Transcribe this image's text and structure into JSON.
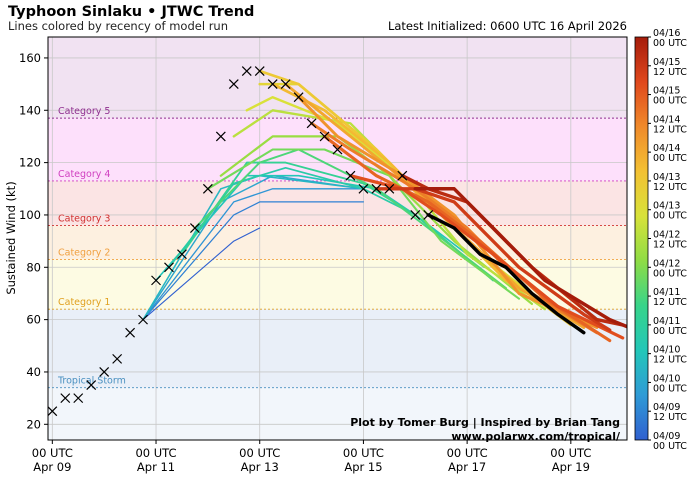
{
  "header": {
    "title": "Typhoon Sinlaku • JTWC Trend",
    "subtitle": "Lines colored by recency of model run",
    "initialized": "Latest Initialized: 0600 UTC 16 April 2026"
  },
  "credits": {
    "line1": "Plot by Tomer Burg | Inspired by Brian Tang",
    "line2": "www.polarwx.com/tropical/"
  },
  "chart_data": {
    "type": "line",
    "title": "Typhoon Sinlaku • JTWC Trend",
    "ylabel": "Sustained Wind (kt)",
    "xlabel": "",
    "xlim_hours": [
      -2,
      266
    ],
    "ylim": [
      14,
      168
    ],
    "yticks": [
      20,
      40,
      60,
      80,
      100,
      120,
      140,
      160
    ],
    "xticks": [
      {
        "hour": 0,
        "line1": "00 UTC",
        "line2": "Apr 09"
      },
      {
        "hour": 48,
        "line1": "00 UTC",
        "line2": "Apr 11"
      },
      {
        "hour": 96,
        "line1": "00 UTC",
        "line2": "Apr 13"
      },
      {
        "hour": 144,
        "line1": "00 UTC",
        "line2": "Apr 15"
      },
      {
        "hour": 192,
        "line1": "00 UTC",
        "line2": "Apr 17"
      },
      {
        "hour": 240,
        "line1": "00 UTC",
        "line2": "Apr 19"
      }
    ],
    "categories": [
      {
        "name": "Tropical Storm",
        "min": 34,
        "max": 64,
        "color": "#4a90c0",
        "fill": "#e9eff8"
      },
      {
        "name": "Category 1",
        "min": 64,
        "max": 83,
        "color": "#e0a020",
        "fill": "#fdfbe3"
      },
      {
        "name": "Category 2",
        "min": 83,
        "max": 96,
        "color": "#f0a040",
        "fill": "#fdf0e0"
      },
      {
        "name": "Category 3",
        "min": 96,
        "max": 113,
        "color": "#d03030",
        "fill": "#fbe4e4"
      },
      {
        "name": "Category 4",
        "min": 113,
        "max": 137,
        "color": "#d040c0",
        "fill": "#fde0fb"
      },
      {
        "name": "Category 5",
        "min": 137,
        "max": 168,
        "color": "#903090",
        "fill": "#f1e2f2"
      }
    ],
    "below_ts_fill": "#f2f6fb",
    "observed": [
      {
        "h": 0,
        "v": 25
      },
      {
        "h": 6,
        "v": 30
      },
      {
        "h": 12,
        "v": 30
      },
      {
        "h": 18,
        "v": 35
      },
      {
        "h": 24,
        "v": 40
      },
      {
        "h": 30,
        "v": 45
      },
      {
        "h": 36,
        "v": 55
      },
      {
        "h": 42,
        "v": 60
      },
      {
        "h": 48,
        "v": 75
      },
      {
        "h": 54,
        "v": 80
      },
      {
        "h": 60,
        "v": 85
      },
      {
        "h": 66,
        "v": 95
      },
      {
        "h": 72,
        "v": 110
      },
      {
        "h": 78,
        "v": 130
      },
      {
        "h": 84,
        "v": 150
      },
      {
        "h": 90,
        "v": 155
      },
      {
        "h": 96,
        "v": 155
      },
      {
        "h": 102,
        "v": 150
      },
      {
        "h": 108,
        "v": 150
      },
      {
        "h": 114,
        "v": 145
      },
      {
        "h": 120,
        "v": 135
      },
      {
        "h": 126,
        "v": 130
      },
      {
        "h": 132,
        "v": 125
      },
      {
        "h": 138,
        "v": 115
      },
      {
        "h": 144,
        "v": 110
      },
      {
        "h": 150,
        "v": 110
      },
      {
        "h": 156,
        "v": 110
      },
      {
        "h": 162,
        "v": 115
      },
      {
        "h": 168,
        "v": 100
      },
      {
        "h": 174,
        "v": 100
      }
    ],
    "series": [
      {
        "run": "04/09 00 UTC",
        "recency": 0.0,
        "points": [
          [
            42,
            60
          ],
          [
            84,
            90
          ],
          [
            96,
            95
          ]
        ]
      },
      {
        "run": "04/09 12 UTC",
        "recency": 0.06,
        "points": [
          [
            42,
            60
          ],
          [
            84,
            100
          ],
          [
            96,
            105
          ],
          [
            144,
            105
          ]
        ]
      },
      {
        "run": "04/09 18 UTC",
        "recency": 0.1,
        "points": [
          [
            42,
            60
          ],
          [
            84,
            105
          ],
          [
            102,
            110
          ],
          [
            144,
            110
          ]
        ]
      },
      {
        "run": "04/10 00 UTC",
        "recency": 0.14,
        "points": [
          [
            42,
            60
          ],
          [
            78,
            105
          ],
          [
            102,
            115
          ],
          [
            144,
            110
          ]
        ]
      },
      {
        "run": "04/10 06 UTC",
        "recency": 0.18,
        "points": [
          [
            42,
            60
          ],
          [
            78,
            110
          ],
          [
            96,
            115
          ],
          [
            144,
            110
          ]
        ]
      },
      {
        "run": "04/10 12 UTC",
        "recency": 0.22,
        "points": [
          [
            48,
            75
          ],
          [
            90,
            115
          ],
          [
            114,
            115
          ],
          [
            150,
            110
          ],
          [
            168,
            100
          ],
          [
            200,
            80
          ]
        ]
      },
      {
        "run": "04/10 18 UTC",
        "recency": 0.26,
        "points": [
          [
            54,
            80
          ],
          [
            84,
            112
          ],
          [
            108,
            118
          ],
          [
            144,
            110
          ],
          [
            168,
            100
          ],
          [
            204,
            75
          ]
        ]
      },
      {
        "run": "04/11 00 UTC",
        "recency": 0.31,
        "points": [
          [
            60,
            85
          ],
          [
            90,
            120
          ],
          [
            108,
            120
          ],
          [
            144,
            112
          ],
          [
            168,
            100
          ],
          [
            204,
            75
          ]
        ]
      },
      {
        "run": "04/11 06 UTC",
        "recency": 0.36,
        "points": [
          [
            66,
            95
          ],
          [
            96,
            120
          ],
          [
            114,
            125
          ],
          [
            150,
            110
          ],
          [
            174,
            95
          ],
          [
            210,
            72
          ]
        ]
      },
      {
        "run": "04/11 12 UTC",
        "recency": 0.41,
        "points": [
          [
            72,
            110
          ],
          [
            102,
            125
          ],
          [
            126,
            125
          ],
          [
            156,
            115
          ],
          [
            180,
            90
          ],
          [
            216,
            68
          ]
        ]
      },
      {
        "run": "04/11 18 UTC",
        "recency": 0.46,
        "points": [
          [
            78,
            115
          ],
          [
            102,
            130
          ],
          [
            132,
            130
          ],
          [
            156,
            115
          ],
          [
            186,
            90
          ],
          [
            222,
            66
          ]
        ]
      },
      {
        "run": "04/12 00 UTC",
        "recency": 0.51,
        "points": [
          [
            84,
            130
          ],
          [
            102,
            140
          ],
          [
            138,
            135
          ],
          [
            162,
            115
          ],
          [
            192,
            85
          ],
          [
            228,
            64
          ]
        ]
      },
      {
        "run": "04/12 06 UTC",
        "recency": 0.56,
        "points": [
          [
            90,
            140
          ],
          [
            102,
            145
          ],
          [
            132,
            135
          ],
          [
            162,
            115
          ],
          [
            198,
            85
          ],
          [
            234,
            62
          ]
        ]
      },
      {
        "run": "04/12 12 UTC",
        "recency": 0.6,
        "points": [
          [
            96,
            150
          ],
          [
            114,
            150
          ],
          [
            150,
            125
          ],
          [
            168,
            110
          ],
          [
            204,
            80
          ],
          [
            240,
            60
          ]
        ]
      },
      {
        "run": "04/12 18 UTC",
        "recency": 0.64,
        "points": [
          [
            96,
            155
          ],
          [
            114,
            150
          ],
          [
            150,
            125
          ],
          [
            174,
            105
          ],
          [
            204,
            80
          ],
          [
            240,
            58
          ]
        ]
      },
      {
        "run": "04/13 00 UTC",
        "recency": 0.68,
        "points": [
          [
            102,
            150
          ],
          [
            126,
            140
          ],
          [
            156,
            120
          ],
          [
            180,
            100
          ],
          [
            210,
            75
          ],
          [
            246,
            57
          ]
        ]
      },
      {
        "run": "04/13 06 UTC",
        "recency": 0.72,
        "points": [
          [
            108,
            150
          ],
          [
            126,
            138
          ],
          [
            156,
            118
          ],
          [
            180,
            100
          ],
          [
            216,
            72
          ],
          [
            246,
            57
          ]
        ]
      },
      {
        "run": "04/13 12 UTC",
        "recency": 0.76,
        "points": [
          [
            114,
            145
          ],
          [
            132,
            130
          ],
          [
            162,
            115
          ],
          [
            186,
            100
          ],
          [
            216,
            70
          ],
          [
            252,
            57
          ]
        ]
      },
      {
        "run": "04/13 18 UTC",
        "recency": 0.8,
        "points": [
          [
            120,
            135
          ],
          [
            138,
            125
          ],
          [
            168,
            110
          ],
          [
            192,
            95
          ],
          [
            222,
            70
          ],
          [
            252,
            55
          ]
        ]
      },
      {
        "run": "04/14 00 UTC",
        "recency": 0.84,
        "points": [
          [
            126,
            130
          ],
          [
            150,
            115
          ],
          [
            174,
            105
          ],
          [
            198,
            90
          ],
          [
            228,
            68
          ],
          [
            258,
            52
          ]
        ]
      },
      {
        "run": "04/14 12 UTC",
        "recency": 0.88,
        "points": [
          [
            138,
            115
          ],
          [
            162,
            110
          ],
          [
            180,
            100
          ],
          [
            204,
            85
          ],
          [
            234,
            65
          ],
          [
            264,
            53
          ]
        ]
      },
      {
        "run": "04/15 00 UTC",
        "recency": 0.92,
        "points": [
          [
            150,
            110
          ],
          [
            168,
            110
          ],
          [
            186,
            105
          ],
          [
            216,
            80
          ],
          [
            246,
            62
          ],
          [
            258,
            56
          ]
        ]
      },
      {
        "run": "04/15 12 UTC",
        "recency": 0.96,
        "points": [
          [
            162,
            115
          ],
          [
            174,
            110
          ],
          [
            192,
            105
          ],
          [
            222,
            80
          ],
          [
            252,
            60
          ],
          [
            264,
            58
          ]
        ]
      },
      {
        "run": "04/16 00 UTC",
        "recency": 1.0,
        "points": [
          [
            168,
            110
          ],
          [
            186,
            110
          ],
          [
            204,
            95
          ],
          [
            228,
            75
          ],
          [
            258,
            60
          ],
          [
            270,
            56
          ]
        ]
      }
    ],
    "latest": {
      "run": "04/16 06 UTC",
      "color": "#000000",
      "points": [
        [
          174,
          100
        ],
        [
          186,
          95
        ],
        [
          198,
          85
        ],
        [
          210,
          80
        ],
        [
          222,
          70
        ],
        [
          234,
          62
        ],
        [
          246,
          55
        ]
      ]
    },
    "colorbar": {
      "colors": [
        "#3060d0",
        "#2f9bd6",
        "#23c7b8",
        "#38d48a",
        "#8fdc45",
        "#d8e23a",
        "#f3c133",
        "#f08a2b",
        "#e0481d",
        "#a51c0b"
      ],
      "labels": [
        {
          "line1": "04/09",
          "line2": "00 UTC"
        },
        {
          "line1": "04/09",
          "line2": "12 UTC"
        },
        {
          "line1": "04/10",
          "line2": "00 UTC"
        },
        {
          "line1": "04/10",
          "line2": "12 UTC"
        },
        {
          "line1": "04/11",
          "line2": "00 UTC"
        },
        {
          "line1": "04/11",
          "line2": "12 UTC"
        },
        {
          "line1": "04/12",
          "line2": "00 UTC"
        },
        {
          "line1": "04/12",
          "line2": "12 UTC"
        },
        {
          "line1": "04/13",
          "line2": "00 UTC"
        },
        {
          "line1": "04/13",
          "line2": "12 UTC"
        },
        {
          "line1": "04/14",
          "line2": "00 UTC"
        },
        {
          "line1": "04/14",
          "line2": "12 UTC"
        },
        {
          "line1": "04/15",
          "line2": "00 UTC"
        },
        {
          "line1": "04/15",
          "line2": "12 UTC"
        },
        {
          "line1": "04/16",
          "line2": "00 UTC"
        }
      ]
    }
  }
}
